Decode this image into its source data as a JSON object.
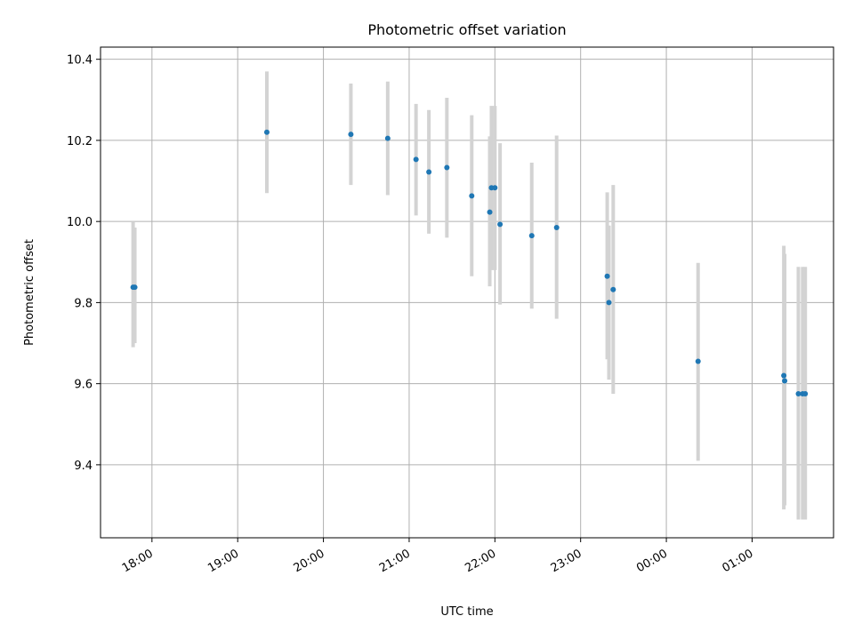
{
  "chart_data": {
    "type": "scatter",
    "title": "Photometric offset variation",
    "xlabel": "UTC time",
    "ylabel": "Photometric offset",
    "x_tick_labels": [
      "18:00",
      "19:00",
      "20:00",
      "21:00",
      "22:00",
      "23:00",
      "00:00",
      "01:00"
    ],
    "y_tick_labels": [
      "9.4",
      "9.6",
      "9.8",
      "10.0",
      "10.2",
      "10.4"
    ],
    "x_unit": "hours since 18:00 UTC",
    "xlim": [
      -0.6,
      7.95
    ],
    "ylim": [
      9.22,
      10.43
    ],
    "grid": true,
    "marker_color": "#1f77b4",
    "errorbar_color": "#d3d3d3",
    "points": [
      {
        "x": -0.22,
        "y": 9.838,
        "ylow": 9.69,
        "yhigh": 10.0
      },
      {
        "x": -0.2,
        "y": 9.838,
        "ylow": 9.7,
        "yhigh": 9.985
      },
      {
        "x": 1.34,
        "y": 10.22,
        "ylow": 10.07,
        "yhigh": 10.37
      },
      {
        "x": 2.32,
        "y": 10.215,
        "ylow": 10.09,
        "yhigh": 10.34
      },
      {
        "x": 2.75,
        "y": 10.205,
        "ylow": 10.065,
        "yhigh": 10.345
      },
      {
        "x": 3.08,
        "y": 10.153,
        "ylow": 10.015,
        "yhigh": 10.29
      },
      {
        "x": 3.23,
        "y": 10.122,
        "ylow": 9.97,
        "yhigh": 10.275
      },
      {
        "x": 3.44,
        "y": 10.133,
        "ylow": 9.96,
        "yhigh": 10.305
      },
      {
        "x": 3.73,
        "y": 10.063,
        "ylow": 9.865,
        "yhigh": 10.262
      },
      {
        "x": 3.94,
        "y": 10.023,
        "ylow": 9.84,
        "yhigh": 10.21
      },
      {
        "x": 3.96,
        "y": 10.083,
        "ylow": 9.88,
        "yhigh": 10.285
      },
      {
        "x": 4.0,
        "y": 10.083,
        "ylow": 9.88,
        "yhigh": 10.285
      },
      {
        "x": 4.06,
        "y": 9.993,
        "ylow": 9.795,
        "yhigh": 10.193
      },
      {
        "x": 4.43,
        "y": 9.965,
        "ylow": 9.785,
        "yhigh": 10.145
      },
      {
        "x": 4.72,
        "y": 9.985,
        "ylow": 9.76,
        "yhigh": 10.212
      },
      {
        "x": 5.31,
        "y": 9.865,
        "ylow": 9.66,
        "yhigh": 10.072
      },
      {
        "x": 5.33,
        "y": 9.8,
        "ylow": 9.61,
        "yhigh": 9.99
      },
      {
        "x": 5.38,
        "y": 9.832,
        "ylow": 9.575,
        "yhigh": 10.09
      },
      {
        "x": 6.37,
        "y": 9.655,
        "ylow": 9.41,
        "yhigh": 9.898
      },
      {
        "x": 7.37,
        "y": 9.62,
        "ylow": 9.29,
        "yhigh": 9.94
      },
      {
        "x": 7.38,
        "y": 9.607,
        "ylow": 9.3,
        "yhigh": 9.92
      },
      {
        "x": 7.54,
        "y": 9.575,
        "ylow": 9.265,
        "yhigh": 9.888
      },
      {
        "x": 7.59,
        "y": 9.575,
        "ylow": 9.265,
        "yhigh": 9.888
      },
      {
        "x": 7.62,
        "y": 9.575,
        "ylow": 9.265,
        "yhigh": 9.888
      }
    ]
  }
}
